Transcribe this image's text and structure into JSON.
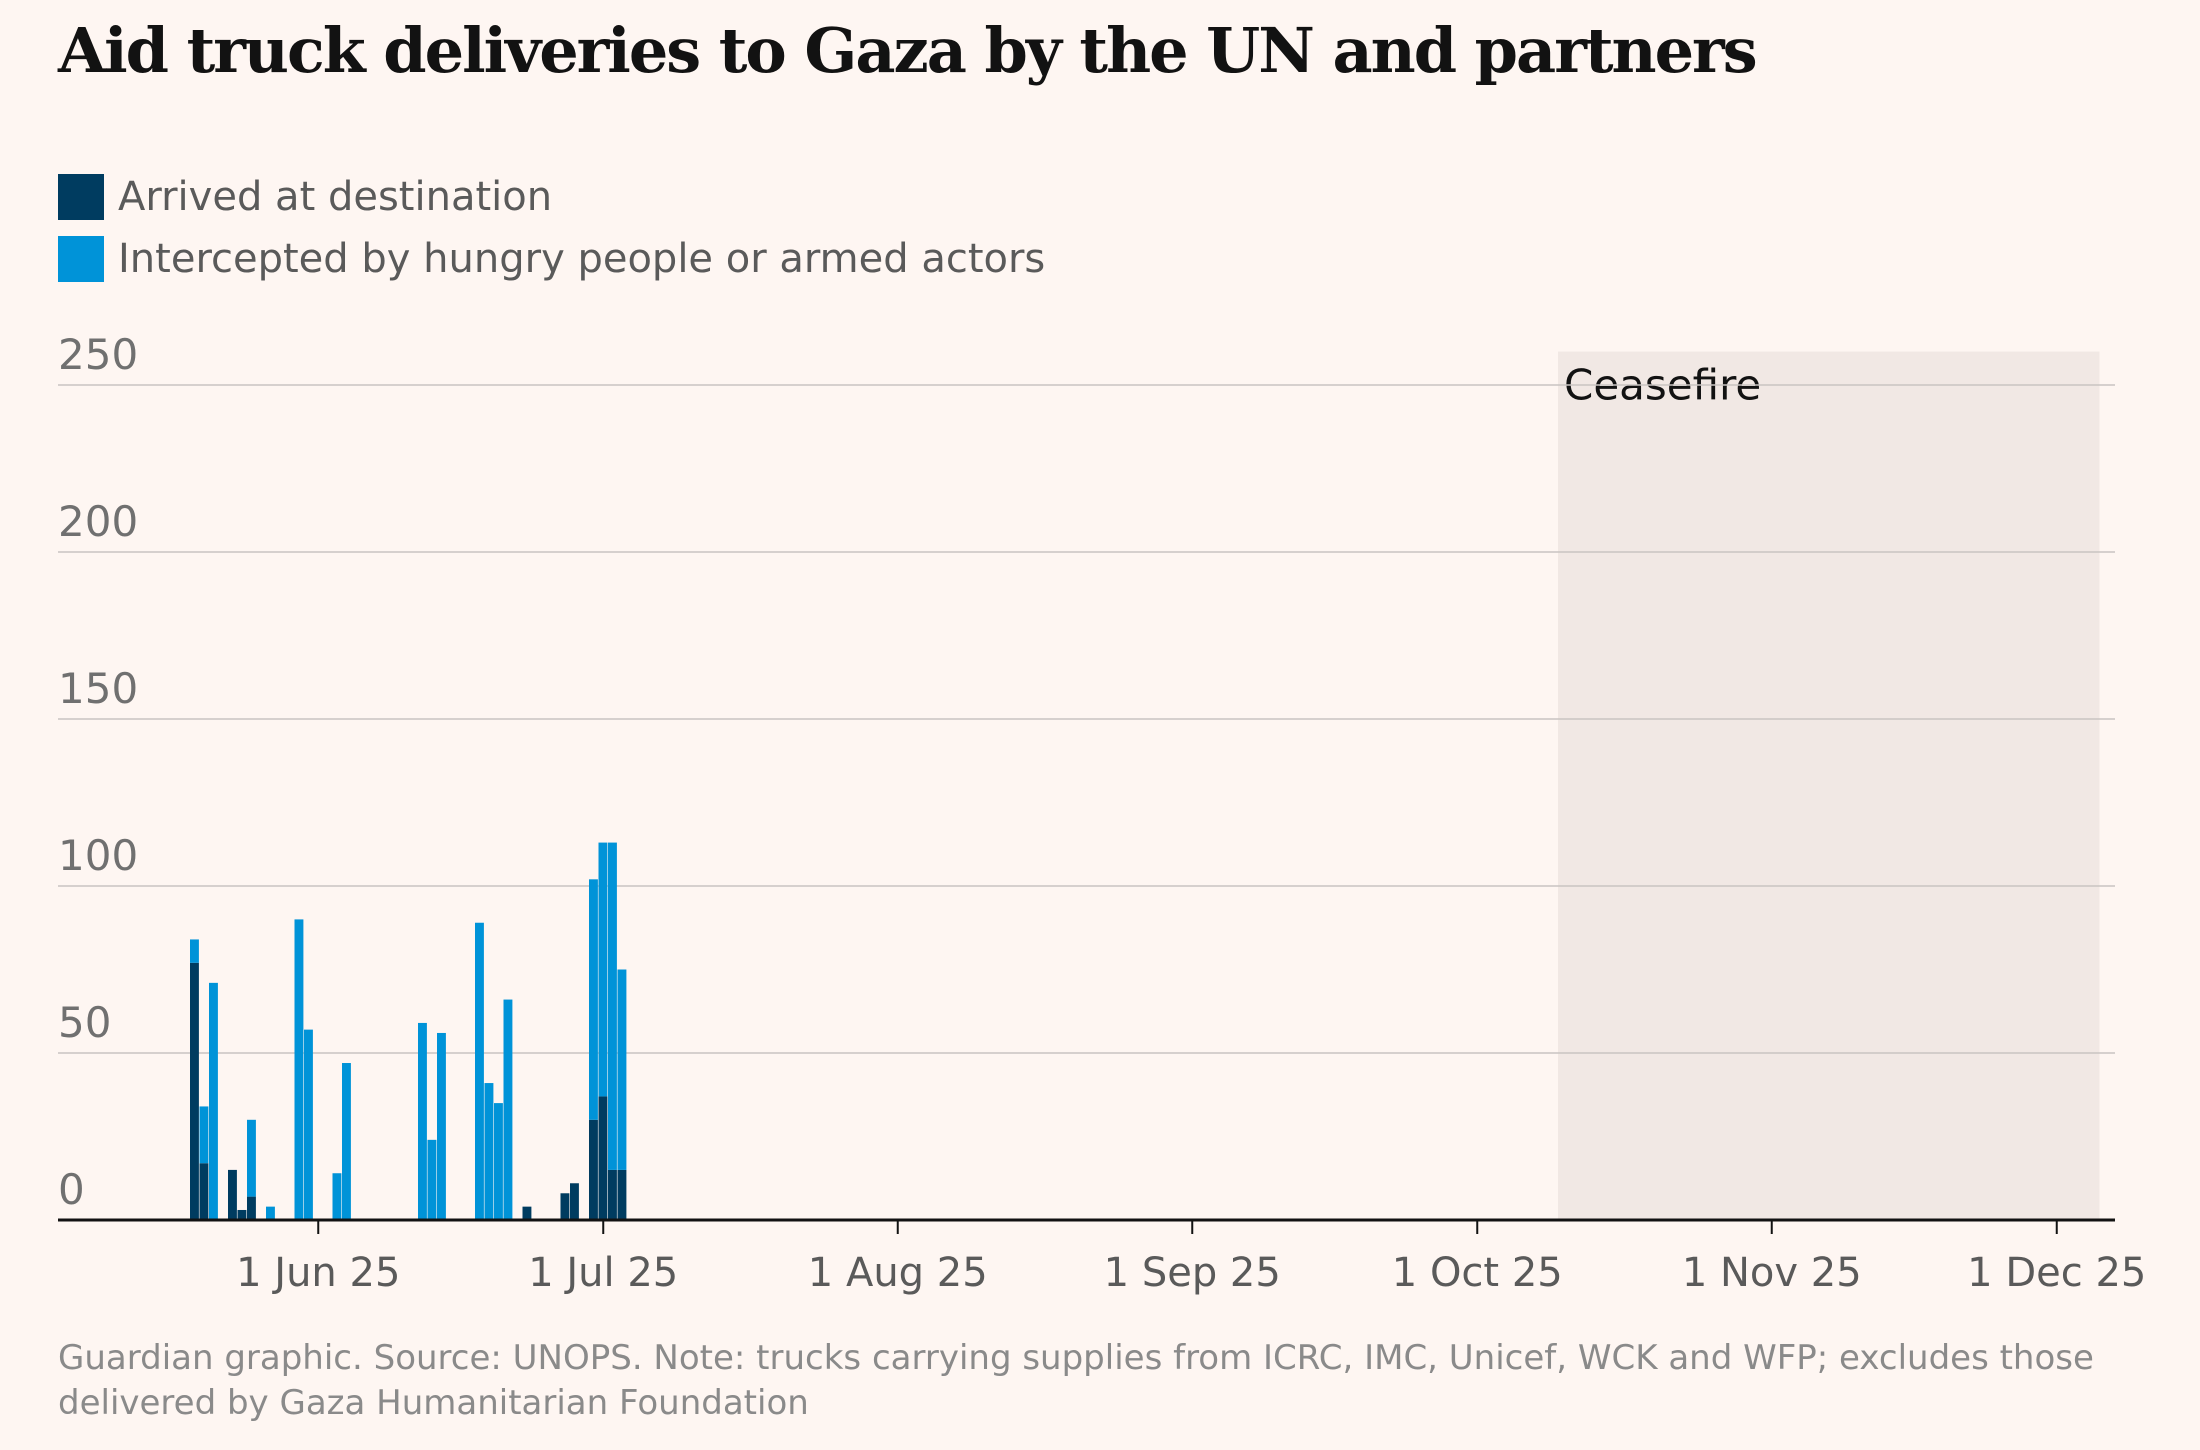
{
  "title": "Aid truck deliveries to Gaza by the UN and partners",
  "legend": [
    {
      "label": "Arrived at destination",
      "color": "#003c60"
    },
    {
      "label": "Intercepted by hungry people or armed actors",
      "color": "#0093d8"
    }
  ],
  "footer": "Guardian graphic. Source: UNOPS. Note: trucks carrying supplies from ICRC, IMC, Unicef, WCK and WFP; excludes those delivered by Gaza Humanitarian Foundation",
  "chart_data": {
    "type": "bar",
    "stacked": true,
    "title": "Aid truck deliveries to Gaza by the UN and partners",
    "x_start": "2025-05-19",
    "ylim": [
      0,
      260
    ],
    "y_ticks": [
      0,
      50,
      100,
      150,
      200,
      250
    ],
    "grid": true,
    "legend_position": "top-left",
    "x_ticks": [
      {
        "label": "1 Jun 25",
        "date": "2025-06-01"
      },
      {
        "label": "1 Jul 25",
        "date": "2025-07-01"
      },
      {
        "label": "1 Aug 25",
        "date": "2025-08-01"
      },
      {
        "label": "1 Sep 25",
        "date": "2025-09-01"
      },
      {
        "label": "1 Oct 25",
        "date": "2025-10-01"
      },
      {
        "label": "1 Nov 25",
        "date": "2025-11-01"
      },
      {
        "label": "1 Dec 25",
        "date": "2025-12-01"
      }
    ],
    "annotation": {
      "label": "Ceasefire",
      "start": "2025-10-10",
      "end": "2025-12-05"
    },
    "series": [
      {
        "name": "Arrived at destination",
        "color": "#003c60",
        "values": [
          77,
          17,
          0,
          0,
          15,
          3,
          7,
          0,
          0,
          0,
          0,
          0,
          0,
          0,
          0,
          0,
          0,
          0,
          0,
          0,
          0,
          0,
          0,
          0,
          0,
          0,
          0,
          0,
          0,
          0,
          0,
          0,
          0,
          0,
          0,
          4,
          0,
          0,
          0,
          8,
          11,
          0,
          30,
          37,
          15,
          15,
          0,
          0,
          0,
          0,
          0,
          0,
          0,
          0,
          0,
          0,
          0,
          0,
          0,
          0,
          0,
          0,
          0,
          0,
          0,
          0,
          0,
          0,
          0,
          0,
          0,
          0,
          0,
          0,
          0,
          0,
          0,
          0,
          0,
          0,
          0,
          0,
          0,
          0,
          0,
          0,
          0,
          0,
          0,
          0,
          0,
          0,
          0,
          0,
          0,
          0,
          0,
          0,
          0,
          0,
          0,
          0,
          0,
          0,
          0,
          0,
          0,
          0,
          0,
          0,
          0,
          0,
          0,
          0,
          0,
          0,
          0,
          0,
          0,
          0,
          0,
          0,
          0,
          0,
          0,
          0,
          0,
          0,
          0,
          0,
          0,
          0,
          0,
          0,
          0,
          0,
          0,
          0,
          0,
          0,
          0,
          0,
          0,
          0,
          0,
          0,
          0,
          0,
          0,
          0,
          0,
          0,
          0,
          0,
          0,
          0,
          0,
          0,
          0,
          0,
          0,
          0,
          0,
          0,
          0,
          0,
          0,
          0,
          0,
          0,
          0,
          0,
          0,
          0,
          0,
          0,
          0,
          0,
          0,
          0,
          0,
          0,
          0,
          0,
          0,
          0,
          0,
          0,
          0,
          0,
          0,
          0,
          0,
          0,
          0,
          0,
          0,
          0,
          0,
          0,
          0,
          0,
          0
        ]
      },
      {
        "name": "Intercepted by hungry people or armed actors",
        "color": "#0093d8",
        "values": [
          7,
          17,
          71,
          0,
          0,
          0,
          23,
          0,
          4,
          0,
          0,
          90,
          57,
          0,
          0,
          14,
          47,
          0,
          0,
          0,
          0,
          0,
          0,
          0,
          59,
          24,
          56,
          0,
          0,
          0,
          89,
          41,
          35,
          66,
          0,
          0,
          0,
          0,
          0,
          0,
          0,
          0,
          72,
          76,
          98,
          60,
          0,
          0,
          0,
          0,
          0,
          0,
          0,
          0,
          0,
          0,
          0,
          0,
          0,
          0,
          0,
          0,
          0,
          0,
          0,
          0,
          0,
          0,
          0,
          0,
          0,
          0,
          0,
          0,
          0,
          0,
          0,
          0,
          0,
          0,
          0,
          0,
          0,
          0,
          0,
          0,
          0,
          0,
          0,
          0,
          0,
          0,
          0,
          0,
          0,
          0,
          0,
          0,
          0,
          0,
          0,
          0,
          0,
          0,
          0,
          0,
          0,
          0,
          0,
          0,
          0,
          0,
          0,
          0,
          0,
          0,
          0,
          0,
          0,
          0,
          0,
          0,
          0,
          0,
          0,
          0,
          0,
          0,
          0,
          0,
          0,
          0,
          0,
          0,
          0,
          0,
          0,
          0,
          0,
          0,
          0,
          0,
          0,
          0,
          0,
          0,
          0,
          0,
          0,
          0,
          0,
          0,
          0,
          0,
          0,
          0,
          0,
          0,
          0,
          0,
          0,
          0,
          0,
          0,
          0,
          0,
          0,
          0,
          0,
          0,
          0,
          0,
          0,
          0,
          0,
          0,
          0,
          0,
          0,
          0,
          0,
          0,
          0,
          0,
          0,
          0,
          0,
          0,
          0,
          0,
          0,
          0,
          0,
          0,
          0,
          0,
          0,
          0,
          0,
          0,
          0,
          0,
          0
        ]
      }
    ]
  }
}
